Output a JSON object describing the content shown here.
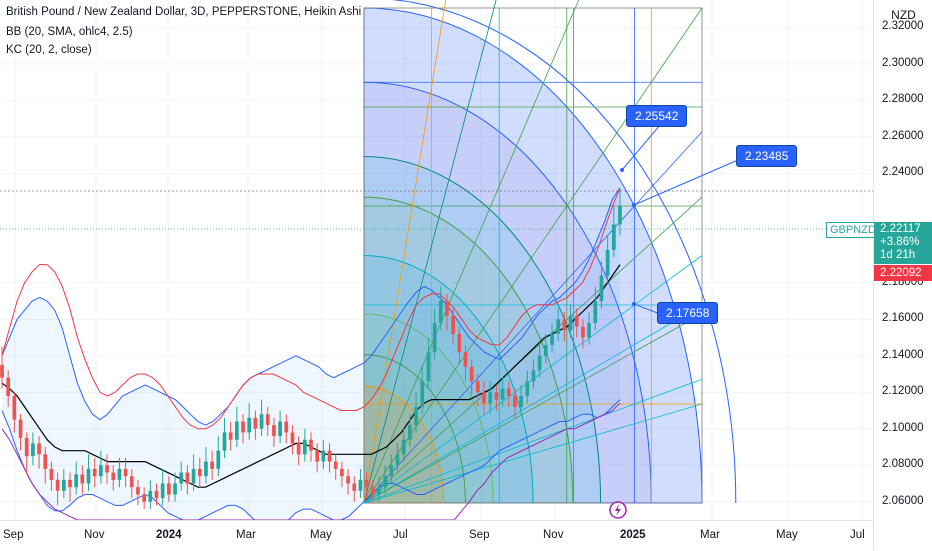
{
  "legend": {
    "title": "British Pound / New Zealand Dollar, 3D, PEPPERSTONE, Heikin Ashi",
    "bb": "BB (20, SMA, ohlc4, 2.5)",
    "kc": "KC (20, 2, close)"
  },
  "currency": "NZD",
  "symbol_tag": "GBPNZD",
  "price_tag": {
    "price": "2.22117",
    "change": "+3.86%",
    "countdown": "1d 21h",
    "close": "2.22092"
  },
  "callouts": [
    "2.25542",
    "2.23485",
    "2.17658"
  ],
  "y_ticks": [
    "2.32000",
    "2.30000",
    "2.28000",
    "2.26000",
    "2.24000",
    "2.18000",
    "2.16000",
    "2.14000",
    "2.12000",
    "2.10000",
    "2.08000",
    "2.06000"
  ],
  "x_ticks": [
    {
      "label": "Sep",
      "bold": false
    },
    {
      "label": "Nov",
      "bold": false
    },
    {
      "label": "2024",
      "bold": true
    },
    {
      "label": "Mar",
      "bold": false
    },
    {
      "label": "May",
      "bold": false
    },
    {
      "label": "Jul",
      "bold": false
    },
    {
      "label": "Sep",
      "bold": false
    },
    {
      "label": "Nov",
      "bold": false
    },
    {
      "label": "2025",
      "bold": true
    },
    {
      "label": "Mar",
      "bold": false
    },
    {
      "label": "May",
      "bold": false
    },
    {
      "label": "Jul",
      "bold": false
    }
  ],
  "colors": {
    "up": "#26a69a",
    "down": "#ef5350",
    "bb_band": "#2962ff",
    "kc_band": "#f23645",
    "basis": "#000000",
    "price_tag": "#26a69a",
    "close_tag": "#f23645",
    "callout": "#2962ff"
  },
  "chart_data": {
    "type": "candlestick",
    "title": "British Pound / New Zealand Dollar, 3D, PEPPERSTONE, Heikin Ashi",
    "ylim": [
      2.05,
      2.335
    ],
    "candles": [
      {
        "open": 2.135,
        "close": 2.128,
        "high": 2.145,
        "low": 2.122
      },
      {
        "open": 2.128,
        "close": 2.118,
        "high": 2.132,
        "low": 2.112
      },
      {
        "open": 2.118,
        "close": 2.105,
        "high": 2.12,
        "low": 2.098
      },
      {
        "open": 2.105,
        "close": 2.095,
        "high": 2.108,
        "low": 2.088
      },
      {
        "open": 2.095,
        "close": 2.085,
        "high": 2.098,
        "low": 2.075
      },
      {
        "open": 2.085,
        "close": 2.092,
        "high": 2.098,
        "low": 2.08
      },
      {
        "open": 2.092,
        "close": 2.086,
        "high": 2.096,
        "low": 2.078
      },
      {
        "open": 2.086,
        "close": 2.078,
        "high": 2.09,
        "low": 2.07
      },
      {
        "open": 2.078,
        "close": 2.072,
        "high": 2.082,
        "low": 2.066
      },
      {
        "open": 2.072,
        "close": 2.066,
        "high": 2.076,
        "low": 2.058
      },
      {
        "open": 2.066,
        "close": 2.072,
        "high": 2.078,
        "low": 2.062
      },
      {
        "open": 2.072,
        "close": 2.068,
        "high": 2.076,
        "low": 2.06
      },
      {
        "open": 2.068,
        "close": 2.075,
        "high": 2.082,
        "low": 2.064
      },
      {
        "open": 2.075,
        "close": 2.07,
        "high": 2.08,
        "low": 2.064
      },
      {
        "open": 2.07,
        "close": 2.078,
        "high": 2.086,
        "low": 2.066
      },
      {
        "open": 2.078,
        "close": 2.074,
        "high": 2.084,
        "low": 2.068
      },
      {
        "open": 2.074,
        "close": 2.08,
        "high": 2.088,
        "low": 2.07
      },
      {
        "open": 2.08,
        "close": 2.076,
        "high": 2.086,
        "low": 2.07
      },
      {
        "open": 2.076,
        "close": 2.072,
        "high": 2.08,
        "low": 2.066
      },
      {
        "open": 2.072,
        "close": 2.078,
        "high": 2.084,
        "low": 2.068
      },
      {
        "open": 2.078,
        "close": 2.074,
        "high": 2.084,
        "low": 2.068
      },
      {
        "open": 2.074,
        "close": 2.068,
        "high": 2.078,
        "low": 2.062
      },
      {
        "open": 2.068,
        "close": 2.064,
        "high": 2.072,
        "low": 2.058
      },
      {
        "open": 2.064,
        "close": 2.06,
        "high": 2.068,
        "low": 2.056
      },
      {
        "open": 2.06,
        "close": 2.066,
        "high": 2.072,
        "low": 2.056
      },
      {
        "open": 2.066,
        "close": 2.062,
        "high": 2.07,
        "low": 2.058
      },
      {
        "open": 2.062,
        "close": 2.07,
        "high": 2.078,
        "low": 2.058
      },
      {
        "open": 2.07,
        "close": 2.064,
        "high": 2.074,
        "low": 2.06
      },
      {
        "open": 2.064,
        "close": 2.07,
        "high": 2.076,
        "low": 2.06
      },
      {
        "open": 2.07,
        "close": 2.076,
        "high": 2.082,
        "low": 2.066
      },
      {
        "open": 2.076,
        "close": 2.07,
        "high": 2.08,
        "low": 2.064
      },
      {
        "open": 2.07,
        "close": 2.078,
        "high": 2.086,
        "low": 2.066
      },
      {
        "open": 2.078,
        "close": 2.074,
        "high": 2.084,
        "low": 2.068
      },
      {
        "open": 2.074,
        "close": 2.082,
        "high": 2.09,
        "low": 2.07
      },
      {
        "open": 2.082,
        "close": 2.078,
        "high": 2.088,
        "low": 2.072
      },
      {
        "open": 2.078,
        "close": 2.088,
        "high": 2.096,
        "low": 2.074
      },
      {
        "open": 2.088,
        "close": 2.098,
        "high": 2.106,
        "low": 2.084
      },
      {
        "open": 2.098,
        "close": 2.094,
        "high": 2.104,
        "low": 2.088
      },
      {
        "open": 2.094,
        "close": 2.104,
        "high": 2.112,
        "low": 2.09
      },
      {
        "open": 2.104,
        "close": 2.098,
        "high": 2.108,
        "low": 2.092
      },
      {
        "open": 2.098,
        "close": 2.106,
        "high": 2.114,
        "low": 2.094
      },
      {
        "open": 2.106,
        "close": 2.1,
        "high": 2.11,
        "low": 2.094
      },
      {
        "open": 2.1,
        "close": 2.108,
        "high": 2.116,
        "low": 2.096
      },
      {
        "open": 2.108,
        "close": 2.102,
        "high": 2.112,
        "low": 2.096
      },
      {
        "open": 2.102,
        "close": 2.096,
        "high": 2.106,
        "low": 2.09
      },
      {
        "open": 2.096,
        "close": 2.104,
        "high": 2.11,
        "low": 2.092
      },
      {
        "open": 2.104,
        "close": 2.098,
        "high": 2.108,
        "low": 2.092
      },
      {
        "open": 2.098,
        "close": 2.092,
        "high": 2.102,
        "low": 2.086
      },
      {
        "open": 2.092,
        "close": 2.086,
        "high": 2.096,
        "low": 2.08
      },
      {
        "open": 2.086,
        "close": 2.094,
        "high": 2.1,
        "low": 2.082
      },
      {
        "open": 2.094,
        "close": 2.088,
        "high": 2.098,
        "low": 2.082
      },
      {
        "open": 2.088,
        "close": 2.082,
        "high": 2.092,
        "low": 2.076
      },
      {
        "open": 2.082,
        "close": 2.088,
        "high": 2.094,
        "low": 2.078
      },
      {
        "open": 2.088,
        "close": 2.082,
        "high": 2.092,
        "low": 2.076
      },
      {
        "open": 2.082,
        "close": 2.078,
        "high": 2.086,
        "low": 2.072
      },
      {
        "open": 2.078,
        "close": 2.074,
        "high": 2.082,
        "low": 2.068
      },
      {
        "open": 2.074,
        "close": 2.07,
        "high": 2.078,
        "low": 2.064
      },
      {
        "open": 2.07,
        "close": 2.066,
        "high": 2.074,
        "low": 2.06
      },
      {
        "open": 2.066,
        "close": 2.072,
        "high": 2.078,
        "low": 2.062
      },
      {
        "open": 2.072,
        "close": 2.068,
        "high": 2.076,
        "low": 2.062
      },
      {
        "open": 2.068,
        "close": 2.064,
        "high": 2.072,
        "low": 2.06
      },
      {
        "open": 2.064,
        "close": 2.068,
        "high": 2.074,
        "low": 2.06
      },
      {
        "open": 2.068,
        "close": 2.074,
        "high": 2.08,
        "low": 2.064
      },
      {
        "open": 2.074,
        "close": 2.08,
        "high": 2.086,
        "low": 2.07
      },
      {
        "open": 2.08,
        "close": 2.086,
        "high": 2.092,
        "low": 2.076
      },
      {
        "open": 2.086,
        "close": 2.094,
        "high": 2.1,
        "low": 2.082
      },
      {
        "open": 2.094,
        "close": 2.102,
        "high": 2.108,
        "low": 2.09
      },
      {
        "open": 2.102,
        "close": 2.112,
        "high": 2.12,
        "low": 2.098
      },
      {
        "open": 2.112,
        "close": 2.126,
        "high": 2.134,
        "low": 2.108
      },
      {
        "open": 2.126,
        "close": 2.142,
        "high": 2.15,
        "low": 2.122
      },
      {
        "open": 2.142,
        "close": 2.158,
        "high": 2.166,
        "low": 2.138
      },
      {
        "open": 2.158,
        "close": 2.17,
        "high": 2.178,
        "low": 2.154
      },
      {
        "open": 2.17,
        "close": 2.162,
        "high": 2.174,
        "low": 2.154
      },
      {
        "open": 2.162,
        "close": 2.152,
        "high": 2.166,
        "low": 2.146
      },
      {
        "open": 2.152,
        "close": 2.142,
        "high": 2.156,
        "low": 2.136
      },
      {
        "open": 2.142,
        "close": 2.134,
        "high": 2.146,
        "low": 2.126
      },
      {
        "open": 2.134,
        "close": 2.126,
        "high": 2.138,
        "low": 2.118
      },
      {
        "open": 2.126,
        "close": 2.12,
        "high": 2.13,
        "low": 2.112
      },
      {
        "open": 2.12,
        "close": 2.114,
        "high": 2.126,
        "low": 2.108
      },
      {
        "open": 2.114,
        "close": 2.12,
        "high": 2.126,
        "low": 2.108
      },
      {
        "open": 2.12,
        "close": 2.116,
        "high": 2.124,
        "low": 2.11
      },
      {
        "open": 2.116,
        "close": 2.122,
        "high": 2.128,
        "low": 2.112
      },
      {
        "open": 2.122,
        "close": 2.118,
        "high": 2.126,
        "low": 2.112
      },
      {
        "open": 2.118,
        "close": 2.112,
        "high": 2.122,
        "low": 2.106
      },
      {
        "open": 2.112,
        "close": 2.118,
        "high": 2.124,
        "low": 2.108
      },
      {
        "open": 2.118,
        "close": 2.126,
        "high": 2.132,
        "low": 2.114
      },
      {
        "open": 2.126,
        "close": 2.132,
        "high": 2.138,
        "low": 2.122
      },
      {
        "open": 2.132,
        "close": 2.14,
        "high": 2.146,
        "low": 2.128
      },
      {
        "open": 2.14,
        "close": 2.146,
        "high": 2.152,
        "low": 2.136
      },
      {
        "open": 2.146,
        "close": 2.152,
        "high": 2.158,
        "low": 2.142
      },
      {
        "open": 2.152,
        "close": 2.16,
        "high": 2.166,
        "low": 2.148
      },
      {
        "open": 2.16,
        "close": 2.154,
        "high": 2.164,
        "low": 2.148
      },
      {
        "open": 2.154,
        "close": 2.162,
        "high": 2.168,
        "low": 2.15
      },
      {
        "open": 2.162,
        "close": 2.156,
        "high": 2.166,
        "low": 2.15
      },
      {
        "open": 2.156,
        "close": 2.15,
        "high": 2.16,
        "low": 2.144
      },
      {
        "open": 2.15,
        "close": 2.158,
        "high": 2.164,
        "low": 2.146
      },
      {
        "open": 2.158,
        "close": 2.17,
        "high": 2.178,
        "low": 2.154
      },
      {
        "open": 2.17,
        "close": 2.184,
        "high": 2.192,
        "low": 2.166
      },
      {
        "open": 2.184,
        "close": 2.198,
        "high": 2.206,
        "low": 2.18
      },
      {
        "open": 2.198,
        "close": 2.212,
        "high": 2.222,
        "low": 2.194
      },
      {
        "open": 2.212,
        "close": 2.222,
        "high": 2.232,
        "low": 2.206
      }
    ],
    "bb_upper": [
      2.14,
      2.15,
      2.16,
      2.165,
      2.17,
      2.172,
      2.17,
      2.165,
      2.155,
      2.14,
      2.125,
      2.115,
      2.108,
      2.105,
      2.108,
      2.113,
      2.118,
      2.12,
      2.122,
      2.124,
      2.122,
      2.12,
      2.118,
      2.116,
      2.112,
      2.108,
      2.104,
      2.102,
      2.104,
      2.108,
      2.112,
      2.118,
      2.124,
      2.128,
      2.13,
      2.132,
      2.134,
      2.136,
      2.138,
      2.14,
      2.138,
      2.136,
      2.134,
      2.13,
      2.128,
      2.13,
      2.132,
      2.134,
      2.136,
      2.14,
      2.146,
      2.152,
      2.158,
      2.164,
      2.17,
      2.175,
      2.178,
      2.176,
      2.172,
      2.168,
      2.162,
      2.156,
      2.15,
      2.146,
      2.142,
      2.14,
      2.138,
      2.142,
      2.146,
      2.15,
      2.156,
      2.162,
      2.166,
      2.17,
      2.172,
      2.176,
      2.18,
      2.186,
      2.194,
      2.204,
      2.214,
      2.226,
      2.232
    ],
    "bb_lower": [
      2.11,
      2.1,
      2.088,
      2.078,
      2.07,
      2.064,
      2.058,
      2.055,
      2.055,
      2.058,
      2.062,
      2.064,
      2.064,
      2.062,
      2.06,
      2.058,
      2.058,
      2.06,
      2.062,
      2.064,
      2.062,
      2.058,
      2.054,
      2.052,
      2.05,
      2.05,
      2.05,
      2.052,
      2.054,
      2.056,
      2.058,
      2.058,
      2.056,
      2.052,
      2.048,
      2.046,
      2.044,
      2.046,
      2.05,
      2.054,
      2.056,
      2.056,
      2.054,
      2.052,
      2.05,
      2.05,
      2.052,
      2.056,
      2.06,
      2.064,
      2.068,
      2.07,
      2.07,
      2.068,
      2.066,
      2.064,
      2.064,
      2.066,
      2.068,
      2.07,
      2.072,
      2.074,
      2.076,
      2.078,
      2.08,
      2.084,
      2.088,
      2.09,
      2.092,
      2.094,
      2.096,
      2.098,
      2.1,
      2.102,
      2.104,
      2.104,
      2.106,
      2.108,
      2.108,
      2.106,
      2.108,
      2.112,
      2.116
    ],
    "basis": [
      2.125,
      2.122,
      2.118,
      2.112,
      2.106,
      2.1,
      2.094,
      2.09,
      2.088,
      2.088,
      2.088,
      2.088,
      2.086,
      2.084,
      2.082,
      2.082,
      2.082,
      2.082,
      2.082,
      2.082,
      2.08,
      2.078,
      2.076,
      2.074,
      2.072,
      2.07,
      2.068,
      2.068,
      2.07,
      2.072,
      2.074,
      2.076,
      2.078,
      2.08,
      2.082,
      2.084,
      2.086,
      2.088,
      2.09,
      2.092,
      2.092,
      2.09,
      2.088,
      2.086,
      2.086,
      2.086,
      2.086,
      2.086,
      2.086,
      2.086,
      2.088,
      2.09,
      2.094,
      2.098,
      2.104,
      2.11,
      2.114,
      2.116,
      2.116,
      2.116,
      2.116,
      2.116,
      2.116,
      2.118,
      2.12,
      2.122,
      2.126,
      2.13,
      2.134,
      2.138,
      2.142,
      2.146,
      2.15,
      2.152,
      2.154,
      2.156,
      2.16,
      2.164,
      2.168,
      2.172,
      2.178,
      2.184,
      2.19
    ],
    "kc_upper": [
      2.14,
      2.155,
      2.17,
      2.18,
      2.186,
      2.19,
      2.19,
      2.186,
      2.178,
      2.166,
      2.15,
      2.138,
      2.128,
      2.12,
      2.118,
      2.12,
      2.124,
      2.128,
      2.13,
      2.13,
      2.128,
      2.124,
      2.118,
      2.112,
      2.106,
      2.102,
      2.1,
      2.1,
      2.102,
      2.106,
      2.112,
      2.118,
      2.124,
      2.128,
      2.13,
      2.13,
      2.13,
      2.128,
      2.126,
      2.124,
      2.12,
      2.118,
      2.116,
      2.114,
      2.112,
      2.11,
      2.11,
      2.11,
      2.112,
      2.116,
      2.122,
      2.13,
      2.14,
      2.15,
      2.16,
      2.168,
      2.172,
      2.174,
      2.174,
      2.17,
      2.166,
      2.16,
      2.154,
      2.15,
      2.148,
      2.146,
      2.146,
      2.15,
      2.156,
      2.162,
      2.166,
      2.168,
      2.168,
      2.168,
      2.17,
      2.172,
      2.176,
      2.18,
      2.188,
      2.198,
      2.21,
      2.222,
      2.232
    ],
    "kc_lower": [
      2.1,
      2.094,
      2.086,
      2.078,
      2.07,
      2.064,
      2.06,
      2.056,
      2.054,
      2.052,
      2.05,
      2.05,
      2.05,
      2.05,
      2.05,
      2.05,
      2.05,
      2.05,
      2.05,
      2.05,
      2.05,
      2.05,
      2.05,
      2.05,
      2.05,
      2.05,
      2.05,
      2.05,
      2.05,
      2.05,
      2.05,
      2.05,
      2.05,
      2.05,
      2.05,
      2.05,
      2.05,
      2.05,
      2.05,
      2.05,
      2.05,
      2.05,
      2.05,
      2.05,
      2.05,
      2.05,
      2.05,
      2.05,
      2.05,
      2.05,
      2.05,
      2.05,
      2.05,
      2.05,
      2.05,
      2.05,
      2.05,
      2.05,
      2.05,
      2.05,
      2.05,
      2.055,
      2.06,
      2.066,
      2.07,
      2.076,
      2.08,
      2.084,
      2.086,
      2.088,
      2.09,
      2.092,
      2.094,
      2.096,
      2.098,
      2.1,
      2.1,
      2.102,
      2.104,
      2.106,
      2.108,
      2.11,
      2.114
    ]
  }
}
